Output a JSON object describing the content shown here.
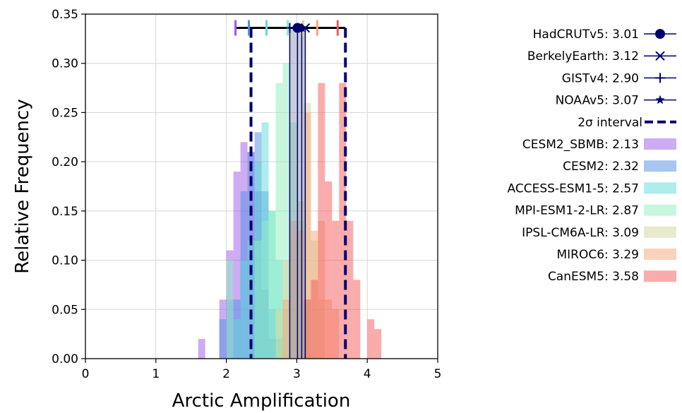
{
  "chart_data": {
    "type": "bar",
    "subtype": "overlapping histograms with observational estimates",
    "xlabel": "Arctic Amplification",
    "ylabel": "Relative Frequency",
    "xlim": [
      0,
      5
    ],
    "ylim": [
      0,
      0.35
    ],
    "grid": true,
    "legend_position": "right, outside",
    "x_ticks": [
      "0",
      "1",
      "2",
      "3",
      "4",
      "5"
    ],
    "y_ticks": [
      "0.00",
      "0.05",
      "0.10",
      "0.15",
      "0.20",
      "0.25",
      "0.30",
      "0.35"
    ],
    "bin_width": 0.1,
    "observations": [
      {
        "name": "HadCRUTv5",
        "value_label": "3.01",
        "value": 3.01,
        "marker": "circle",
        "color": "#00006e"
      },
      {
        "name": "BerkelyEarth",
        "value_label": "3.12",
        "value": 3.12,
        "marker": "x",
        "color": "#00006e"
      },
      {
        "name": "GISTv4",
        "value_label": "2.90",
        "value": 2.9,
        "marker": "plus",
        "color": "#00006e"
      },
      {
        "name": "NOAAv5",
        "value_label": "3.07",
        "value": 3.07,
        "marker": "star",
        "color": "#00006e"
      }
    ],
    "interval": {
      "label": "2σ interval",
      "lower": 2.35,
      "upper": 3.69,
      "color": "#00006e"
    },
    "range_line": {
      "y": 0.336,
      "x_start": 2.13,
      "x_end": 3.69
    },
    "series": [
      {
        "name": "CESM2_SBMB",
        "value_label": "2.13",
        "mean": 2.13,
        "color": "#9b59e8",
        "bins": [
          [
            1.6,
            0.02
          ],
          [
            1.9,
            0.06
          ],
          [
            2.0,
            0.11
          ],
          [
            2.1,
            0.19
          ],
          [
            2.2,
            0.22
          ],
          [
            2.3,
            0.21
          ],
          [
            2.4,
            0.17
          ],
          [
            2.5,
            0.07
          ],
          [
            2.6,
            0.02
          ]
        ]
      },
      {
        "name": "CESM2",
        "value_label": "2.32",
        "mean": 2.32,
        "color": "#4f8fe6",
        "bins": [
          [
            1.9,
            0.04
          ],
          [
            2.0,
            0.06
          ],
          [
            2.1,
            0.06
          ],
          [
            2.2,
            0.17
          ],
          [
            2.3,
            0.21
          ],
          [
            2.4,
            0.23
          ],
          [
            2.5,
            0.17
          ],
          [
            2.6,
            0.05
          ],
          [
            2.7,
            0.02
          ]
        ]
      },
      {
        "name": "ACCESS-ESM1-5",
        "value_label": "2.57",
        "mean": 2.57,
        "color": "#5fd9d9",
        "bins": [
          [
            2.1,
            0.04
          ],
          [
            2.2,
            0.1
          ],
          [
            2.3,
            0.12
          ],
          [
            2.4,
            0.2
          ],
          [
            2.5,
            0.24
          ],
          [
            2.6,
            0.15
          ],
          [
            2.7,
            0.1
          ],
          [
            2.8,
            0.05
          ]
        ]
      },
      {
        "name": "MPI-ESM1-2-LR",
        "value_label": "2.87",
        "mean": 2.87,
        "color": "#8ef0be",
        "bins": [
          [
            2.0,
            0.1
          ],
          [
            2.4,
            0.12
          ],
          [
            2.5,
            0.14
          ],
          [
            2.6,
            0.15
          ],
          [
            2.7,
            0.28
          ],
          [
            2.8,
            0.3
          ],
          [
            2.9,
            0.24
          ],
          [
            3.0,
            0.14
          ],
          [
            3.1,
            0.06
          ]
        ]
      },
      {
        "name": "IPSL-CM6A-LR",
        "value_label": "3.09",
        "mean": 3.09,
        "color": "#d4d49a",
        "bins": [
          [
            2.7,
            0.05
          ],
          [
            2.8,
            0.1
          ],
          [
            2.9,
            0.12
          ],
          [
            3.0,
            0.16
          ],
          [
            3.1,
            0.26
          ],
          [
            3.2,
            0.12
          ],
          [
            3.3,
            0.06
          ]
        ]
      },
      {
        "name": "MIROC6",
        "value_label": "3.29",
        "mean": 3.29,
        "color": "#f7a57a",
        "bins": [
          [
            2.8,
            0.06
          ],
          [
            2.9,
            0.14
          ],
          [
            3.0,
            0.13
          ],
          [
            3.1,
            0.25
          ],
          [
            3.2,
            0.13
          ],
          [
            3.3,
            0.14
          ],
          [
            3.4,
            0.06
          ],
          [
            3.5,
            0.05
          ]
        ]
      },
      {
        "name": "CanESM5",
        "value_label": "3.58",
        "mean": 3.58,
        "color": "#f35a58",
        "bins": [
          [
            3.1,
            0.06
          ],
          [
            3.2,
            0.08
          ],
          [
            3.3,
            0.28
          ],
          [
            3.4,
            0.18
          ],
          [
            3.5,
            0.14
          ],
          [
            3.6,
            0.28
          ],
          [
            3.7,
            0.14
          ],
          [
            3.8,
            0.08
          ],
          [
            4.0,
            0.04
          ],
          [
            4.1,
            0.03
          ]
        ]
      }
    ]
  }
}
